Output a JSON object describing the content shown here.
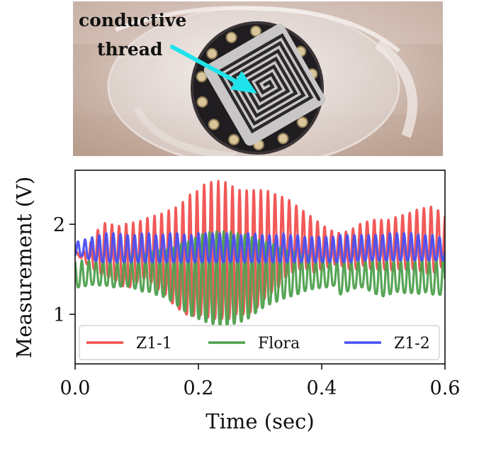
{
  "photo": {
    "annotation_line1": "conductive",
    "annotation_line2": "thread",
    "arrow_color": "#1fe3ea"
  },
  "chart_data": {
    "type": "line",
    "xlabel": "Time (sec)",
    "ylabel": "Measurement (V)",
    "xlim": [
      0.0,
      0.6
    ],
    "ylim": [
      0.45,
      2.6
    ],
    "xticks": [
      0.0,
      0.2,
      0.4,
      0.6
    ],
    "xtick_labels": [
      "0.0",
      "0.2",
      "0.4",
      "0.6"
    ],
    "yticks": [
      1,
      2
    ],
    "ytick_labels": [
      "1",
      "2"
    ],
    "grid": false,
    "legend": {
      "placement": "bottom",
      "ncol": 3
    },
    "series": [
      {
        "name": "Z1-1",
        "color": "#f0504f",
        "x": [
          0.0,
          0.01,
          0.02,
          0.03,
          0.04,
          0.05,
          0.06,
          0.07,
          0.08,
          0.09,
          0.1,
          0.11,
          0.12,
          0.13,
          0.14,
          0.15,
          0.16,
          0.17,
          0.18,
          0.19,
          0.2,
          0.21,
          0.22,
          0.23,
          0.24,
          0.25,
          0.26,
          0.27,
          0.28,
          0.29,
          0.3,
          0.31,
          0.32,
          0.33,
          0.34,
          0.35,
          0.36,
          0.37,
          0.38,
          0.39,
          0.4,
          0.41,
          0.42,
          0.43,
          0.44,
          0.45,
          0.46,
          0.47,
          0.48,
          0.49,
          0.5,
          0.51,
          0.52,
          0.53,
          0.54,
          0.55,
          0.56,
          0.57,
          0.58,
          0.59,
          0.6
        ],
        "upper": [
          1.7,
          1.68,
          1.75,
          1.85,
          1.98,
          2.02,
          2.0,
          1.98,
          2.0,
          2.02,
          2.02,
          2.05,
          2.08,
          2.1,
          2.12,
          2.15,
          2.18,
          2.2,
          2.3,
          2.35,
          2.38,
          2.45,
          2.47,
          2.48,
          2.48,
          2.45,
          2.4,
          2.38,
          2.38,
          2.38,
          2.38,
          2.38,
          2.35,
          2.32,
          2.3,
          2.26,
          2.2,
          2.15,
          2.1,
          2.05,
          2.0,
          1.95,
          1.92,
          1.9,
          1.92,
          1.95,
          2.0,
          2.02,
          2.05,
          2.05,
          2.05,
          2.05,
          2.08,
          2.1,
          2.12,
          2.15,
          2.18,
          2.18,
          2.2,
          2.15,
          2.1
        ],
        "lower": [
          1.68,
          1.62,
          1.55,
          1.5,
          1.45,
          1.42,
          1.4,
          1.35,
          1.3,
          1.3,
          1.35,
          1.4,
          1.38,
          1.3,
          1.25,
          1.2,
          1.1,
          1.05,
          1.0,
          0.98,
          1.0,
          0.98,
          0.95,
          0.95,
          0.95,
          0.95,
          1.0,
          1.0,
          1.0,
          1.05,
          1.1,
          1.2,
          1.25,
          1.3,
          1.4,
          1.45,
          1.5,
          1.5,
          1.5,
          1.45,
          1.5,
          1.52,
          1.55,
          1.55,
          1.5,
          1.5,
          1.5,
          1.55,
          1.5,
          1.5,
          1.5,
          1.48,
          1.5,
          1.5,
          1.5,
          1.5,
          1.48,
          1.45,
          1.45,
          1.5,
          1.55
        ],
        "period": 0.0115,
        "phase": 0.3
      },
      {
        "name": "Flora",
        "color": "#4ea04e",
        "x": [
          0.0,
          0.01,
          0.02,
          0.03,
          0.04,
          0.05,
          0.06,
          0.07,
          0.08,
          0.09,
          0.1,
          0.11,
          0.12,
          0.13,
          0.14,
          0.15,
          0.16,
          0.17,
          0.18,
          0.19,
          0.2,
          0.21,
          0.22,
          0.23,
          0.24,
          0.25,
          0.26,
          0.27,
          0.28,
          0.29,
          0.3,
          0.31,
          0.32,
          0.33,
          0.34,
          0.35,
          0.36,
          0.37,
          0.38,
          0.39,
          0.4,
          0.41,
          0.42,
          0.43,
          0.44,
          0.45,
          0.46,
          0.47,
          0.48,
          0.49,
          0.5,
          0.51,
          0.52,
          0.53,
          0.54,
          0.55,
          0.56,
          0.57,
          0.58,
          0.59,
          0.6
        ],
        "upper": [
          1.6,
          1.6,
          1.6,
          1.6,
          1.62,
          1.62,
          1.6,
          1.62,
          1.64,
          1.65,
          1.65,
          1.66,
          1.68,
          1.7,
          1.72,
          1.72,
          1.74,
          1.78,
          1.8,
          1.82,
          1.88,
          1.9,
          1.92,
          1.92,
          1.92,
          1.92,
          1.9,
          1.9,
          1.88,
          1.85,
          1.82,
          1.8,
          1.78,
          1.75,
          1.72,
          1.7,
          1.68,
          1.65,
          1.65,
          1.62,
          1.62,
          1.62,
          1.6,
          1.6,
          1.6,
          1.6,
          1.6,
          1.6,
          1.62,
          1.62,
          1.62,
          1.62,
          1.6,
          1.6,
          1.62,
          1.6,
          1.62,
          1.6,
          1.6,
          1.62,
          1.65
        ],
        "lower": [
          1.3,
          1.3,
          1.32,
          1.33,
          1.32,
          1.32,
          1.3,
          1.3,
          1.32,
          1.3,
          1.28,
          1.25,
          1.25,
          1.22,
          1.2,
          1.18,
          1.12,
          1.08,
          1.02,
          0.98,
          0.95,
          0.92,
          0.9,
          0.88,
          0.88,
          0.88,
          0.9,
          0.92,
          0.95,
          1.0,
          1.05,
          1.1,
          1.12,
          1.15,
          1.18,
          1.2,
          1.22,
          1.25,
          1.28,
          1.28,
          1.3,
          1.3,
          1.32,
          1.22,
          1.25,
          1.28,
          1.3,
          1.3,
          1.25,
          1.22,
          1.2,
          1.22,
          1.25,
          1.25,
          1.22,
          1.25,
          1.22,
          1.25,
          1.22,
          1.22,
          1.2
        ],
        "period": 0.0115,
        "phase": 0.55
      },
      {
        "name": "Z1-2",
        "color": "#4a4ff2",
        "x": [
          0.0,
          0.01,
          0.02,
          0.03,
          0.04,
          0.05,
          0.06,
          0.07,
          0.08,
          0.09,
          0.1,
          0.11,
          0.12,
          0.13,
          0.14,
          0.15,
          0.16,
          0.17,
          0.18,
          0.19,
          0.2,
          0.21,
          0.22,
          0.23,
          0.24,
          0.25,
          0.26,
          0.27,
          0.28,
          0.29,
          0.3,
          0.31,
          0.32,
          0.33,
          0.34,
          0.35,
          0.36,
          0.37,
          0.38,
          0.39,
          0.4,
          0.41,
          0.42,
          0.43,
          0.44,
          0.45,
          0.46,
          0.47,
          0.48,
          0.49,
          0.5,
          0.51,
          0.52,
          0.53,
          0.54,
          0.55,
          0.56,
          0.57,
          0.58,
          0.59,
          0.6
        ],
        "upper": [
          1.8,
          1.82,
          1.84,
          1.86,
          1.88,
          1.9,
          1.9,
          1.9,
          1.88,
          1.88,
          1.88,
          1.9,
          1.9,
          1.88,
          1.88,
          1.9,
          1.9,
          1.9,
          1.88,
          1.88,
          1.9,
          1.9,
          1.9,
          1.9,
          1.9,
          1.9,
          1.88,
          1.88,
          1.9,
          1.9,
          1.88,
          1.88,
          1.88,
          1.88,
          1.9,
          1.88,
          1.88,
          1.86,
          1.86,
          1.86,
          1.86,
          1.86,
          1.86,
          1.88,
          1.88,
          1.88,
          1.88,
          1.88,
          1.88,
          1.88,
          1.88,
          1.9,
          1.9,
          1.9,
          1.9,
          1.9,
          1.88,
          1.88,
          1.88,
          1.86,
          1.85
        ],
        "lower": [
          1.65,
          1.65,
          1.62,
          1.6,
          1.58,
          1.58,
          1.58,
          1.58,
          1.58,
          1.58,
          1.58,
          1.58,
          1.58,
          1.58,
          1.58,
          1.58,
          1.58,
          1.58,
          1.58,
          1.58,
          1.58,
          1.58,
          1.58,
          1.58,
          1.58,
          1.58,
          1.58,
          1.58,
          1.58,
          1.58,
          1.58,
          1.58,
          1.58,
          1.58,
          1.58,
          1.58,
          1.58,
          1.58,
          1.58,
          1.58,
          1.58,
          1.58,
          1.58,
          1.58,
          1.58,
          1.58,
          1.6,
          1.6,
          1.6,
          1.6,
          1.6,
          1.6,
          1.6,
          1.6,
          1.6,
          1.6,
          1.6,
          1.6,
          1.6,
          1.6,
          1.6
        ],
        "period": 0.0115,
        "phase": 0.1
      }
    ]
  }
}
